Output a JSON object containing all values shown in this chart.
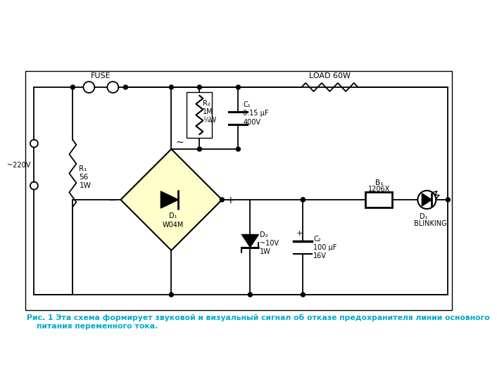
{
  "caption_line1": "Рис. 1 Эта схема формирует звуковой и визуальный сигнал об отказе предохранителя линии основного",
  "caption_line2": "питания переменного тока.",
  "bg_color": "#ffffff",
  "border_color": "#000000",
  "text_color": "#000000",
  "caption_color": "#00aacc",
  "diamond_fill": "#ffffcc"
}
